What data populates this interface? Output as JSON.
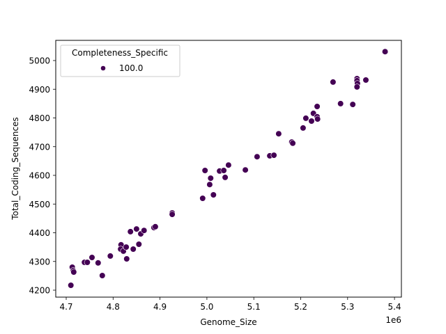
{
  "chart_data": {
    "type": "scatter",
    "title": "",
    "xlabel": "Genome_Size",
    "ylabel": "Total_Coding_Sequences",
    "x_offset_label": "1e6",
    "xlim": [
      4.68,
      5.417
    ],
    "ylim": [
      4175,
      5070
    ],
    "x_ticks": [
      4.7,
      4.8,
      4.9,
      5.0,
      5.1,
      5.2,
      5.3,
      5.4
    ],
    "x_tick_labels": [
      "4.7",
      "4.8",
      "4.9",
      "5.0",
      "5.1",
      "5.2",
      "5.3",
      "5.4"
    ],
    "y_ticks": [
      4200,
      4300,
      4400,
      4500,
      4600,
      4700,
      4800,
      4900,
      5000
    ],
    "y_tick_labels": [
      "4200",
      "4300",
      "4400",
      "4500",
      "4600",
      "4700",
      "4800",
      "4900",
      "5000"
    ],
    "grid": false,
    "legend": {
      "title": "Completeness_Specific",
      "position": "upper left",
      "entries": [
        {
          "label": "100.0",
          "color": "#440154"
        }
      ]
    },
    "series": [
      {
        "name": "100.0",
        "color": "#440154",
        "x": [
          4.71,
          4.713,
          4.715,
          4.716,
          4.739,
          4.745,
          4.755,
          4.768,
          4.777,
          4.794,
          4.817,
          4.816,
          4.822,
          4.828,
          4.829,
          4.843,
          4.837,
          4.85,
          4.855,
          4.859,
          4.866,
          4.887,
          4.89,
          4.926,
          4.926,
          4.991,
          4.996,
          5.008,
          5.006,
          5.014,
          5.027,
          5.036,
          5.039,
          5.046,
          5.082,
          5.107,
          5.134,
          5.143,
          5.153,
          5.181,
          5.183,
          5.205,
          5.211,
          5.223,
          5.227,
          5.235,
          5.236,
          5.235,
          5.269,
          5.285,
          5.311,
          5.32,
          5.32,
          5.321,
          5.32,
          5.339,
          5.38
        ],
        "y": [
          4217,
          4280,
          4268,
          4263,
          4297,
          4297,
          4314,
          4295,
          4251,
          4319,
          4358,
          4343,
          4336,
          4350,
          4309,
          4343,
          4404,
          4413,
          4360,
          4396,
          4408,
          4418,
          4421,
          4469,
          4464,
          4520,
          4617,
          4590,
          4568,
          4532,
          4615,
          4617,
          4593,
          4636,
          4619,
          4665,
          4668,
          4670,
          4745,
          4716,
          4712,
          4765,
          4799,
          4789,
          4816,
          4804,
          4796,
          4840,
          4925,
          4850,
          4847,
          4937,
          4930,
          4920,
          4908,
          4932,
          5031
        ]
      }
    ]
  }
}
